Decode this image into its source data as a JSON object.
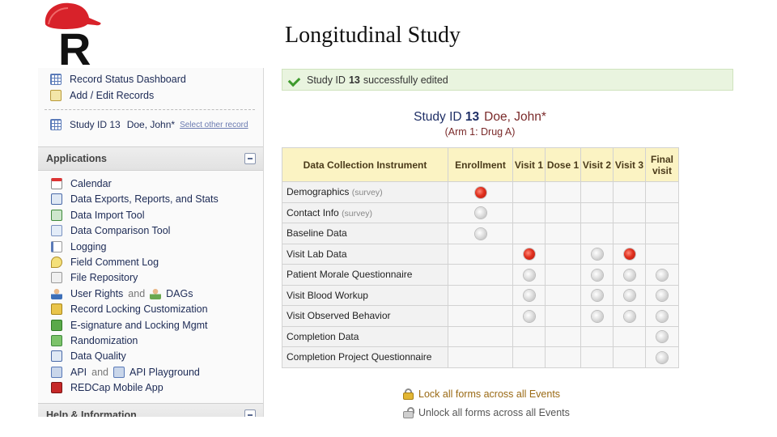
{
  "slide": {
    "title": "Longitudinal Study"
  },
  "logo": {
    "letter": "R"
  },
  "sidebar": {
    "top_items": [
      {
        "label": "Record Status Dashboard",
        "icon": "table-icon"
      },
      {
        "label": "Add / Edit Records",
        "icon": "edit-records-icon"
      }
    ],
    "current_record": {
      "study_id": "Study ID 13",
      "name": "Doe, John*",
      "link": "Select other record"
    },
    "applications": {
      "title": "Applications",
      "items": [
        {
          "label": "Calendar",
          "icon": "calendar-icon"
        },
        {
          "label": "Data Exports, Reports, and Stats",
          "icon": "export-icon"
        },
        {
          "label": "Data Import Tool",
          "icon": "import-icon"
        },
        {
          "label": "Data Comparison Tool",
          "icon": "compare-icon"
        },
        {
          "label": "Logging",
          "icon": "logging-icon"
        },
        {
          "label": "Field Comment Log",
          "icon": "comment-icon"
        },
        {
          "label": "File Repository",
          "icon": "folder-icon"
        },
        {
          "label": "User Rights",
          "and": "and",
          "label2": "DAGs",
          "icon": "user-icon"
        },
        {
          "label": "Record Locking Customization",
          "icon": "lock-custom-icon"
        },
        {
          "label": "E-signature and Locking Mgmt",
          "icon": "esign-icon"
        },
        {
          "label": "Randomization",
          "icon": "random-icon"
        },
        {
          "label": "Data Quality",
          "icon": "quality-icon"
        },
        {
          "label": "API",
          "and": "and",
          "label2": "API Playground",
          "icon": "api-icon"
        },
        {
          "label": "REDCap Mobile App",
          "icon": "mobile-app-icon"
        }
      ]
    },
    "help": {
      "title": "Help & Information"
    }
  },
  "main": {
    "success_message": {
      "prefix": "Study ID",
      "id": "13",
      "suffix": "successfully edited"
    },
    "record": {
      "label": "Study ID",
      "id": "13",
      "name": "Doe, John*",
      "arm": "(Arm 1: Drug A)"
    },
    "grid": {
      "first_header": "Data Collection Instrument",
      "events": [
        "Enrollment",
        "Visit 1",
        "Dose 1",
        "Visit 2",
        "Visit 3",
        "Final visit"
      ],
      "rows": [
        {
          "name": "Demographics",
          "tag": "(survey)",
          "status": [
            "red",
            "",
            "",
            "",
            "",
            ""
          ]
        },
        {
          "name": "Contact Info",
          "tag": "(survey)",
          "status": [
            "grey",
            "",
            "",
            "",
            "",
            ""
          ]
        },
        {
          "name": "Baseline Data",
          "tag": "",
          "status": [
            "grey",
            "",
            "",
            "",
            "",
            ""
          ]
        },
        {
          "name": "Visit Lab Data",
          "tag": "",
          "status": [
            "",
            "red",
            "",
            "grey",
            "red",
            ""
          ]
        },
        {
          "name": "Patient Morale Questionnaire",
          "tag": "",
          "status": [
            "",
            "grey",
            "",
            "grey",
            "grey",
            "grey"
          ]
        },
        {
          "name": "Visit Blood Workup",
          "tag": "",
          "status": [
            "",
            "grey",
            "",
            "grey",
            "grey",
            "grey"
          ]
        },
        {
          "name": "Visit Observed Behavior",
          "tag": "",
          "status": [
            "",
            "grey",
            "",
            "grey",
            "grey",
            "grey"
          ]
        },
        {
          "name": "Completion Data",
          "tag": "",
          "status": [
            "",
            "",
            "",
            "",
            "",
            "grey"
          ]
        },
        {
          "name": "Completion Project Questionnaire",
          "tag": "",
          "status": [
            "",
            "",
            "",
            "",
            "",
            "grey"
          ]
        }
      ]
    },
    "lock_all": "Lock all forms across all Events",
    "unlock_all": "Unlock all forms across all Events"
  }
}
